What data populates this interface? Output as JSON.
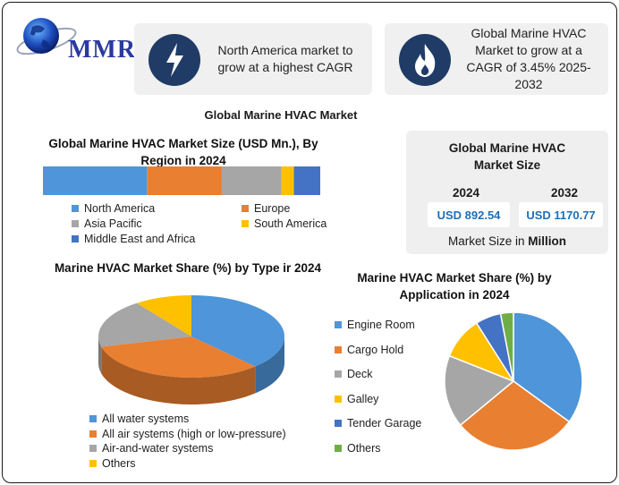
{
  "header": {
    "brand": "MMR",
    "highlights": [
      {
        "text": "North America market to grow at a highest CAGR",
        "icon": "lightning-icon"
      },
      {
        "text": "Global Marine HVAC Market to grow at a CAGR of 3.45% 2025-2032",
        "icon": "flame-icon"
      }
    ]
  },
  "main_title": "Global Marine HVAC Market",
  "panel": {
    "title": "Global Marine HVAC Market Size",
    "year_a": "2024",
    "year_b": "2032",
    "value_a": "USD 892.54",
    "value_b": "USD 1170.77",
    "unit_prefix": "Market Size in ",
    "unit_bold": "Million"
  },
  "chart_data": [
    {
      "type": "bar",
      "orientation": "horizontal-stacked",
      "title": "Global Marine HVAC Market Size (USD Mn.), By Region in 2024",
      "series": [
        {
          "name": "North America",
          "value": 37.5,
          "color": "#4e95d9"
        },
        {
          "name": "Europe",
          "value": 27.0,
          "color": "#e97f31"
        },
        {
          "name": "Asia Pacific",
          "value": 21.5,
          "color": "#a6a6a6"
        },
        {
          "name": "South America",
          "value": 4.5,
          "color": "#ffc000"
        },
        {
          "name": "Middle East and Africa",
          "value": 9.5,
          "color": "#4472c4"
        }
      ],
      "legend": "bottom"
    },
    {
      "type": "pie",
      "style": "3d",
      "title": "Marine HVAC Market Share (%) by Type ir 2024",
      "slices": [
        {
          "name": "All water systems",
          "value": 38,
          "color": "#4e95d9"
        },
        {
          "name": "All air systems (high or low-pressure)",
          "value": 33,
          "color": "#e97f31"
        },
        {
          "name": "Air-and-water systems",
          "value": 19,
          "color": "#a6a6a6"
        },
        {
          "name": "Others",
          "value": 10,
          "color": "#ffc000"
        }
      ],
      "legend": "bottom"
    },
    {
      "type": "pie",
      "title": "Marine HVAC Market Share (%) by Application in 2024",
      "slices": [
        {
          "name": "Engine Room",
          "value": 35,
          "color": "#4e95d9"
        },
        {
          "name": "Cargo Hold",
          "value": 29,
          "color": "#e97f31"
        },
        {
          "name": "Deck",
          "value": 17,
          "color": "#a6a6a6"
        },
        {
          "name": "Galley",
          "value": 10,
          "color": "#ffc000"
        },
        {
          "name": "Tender Garage",
          "value": 6,
          "color": "#4472c4"
        },
        {
          "name": "Others",
          "value": 3,
          "color": "#70ad47"
        }
      ],
      "legend": "left"
    }
  ]
}
